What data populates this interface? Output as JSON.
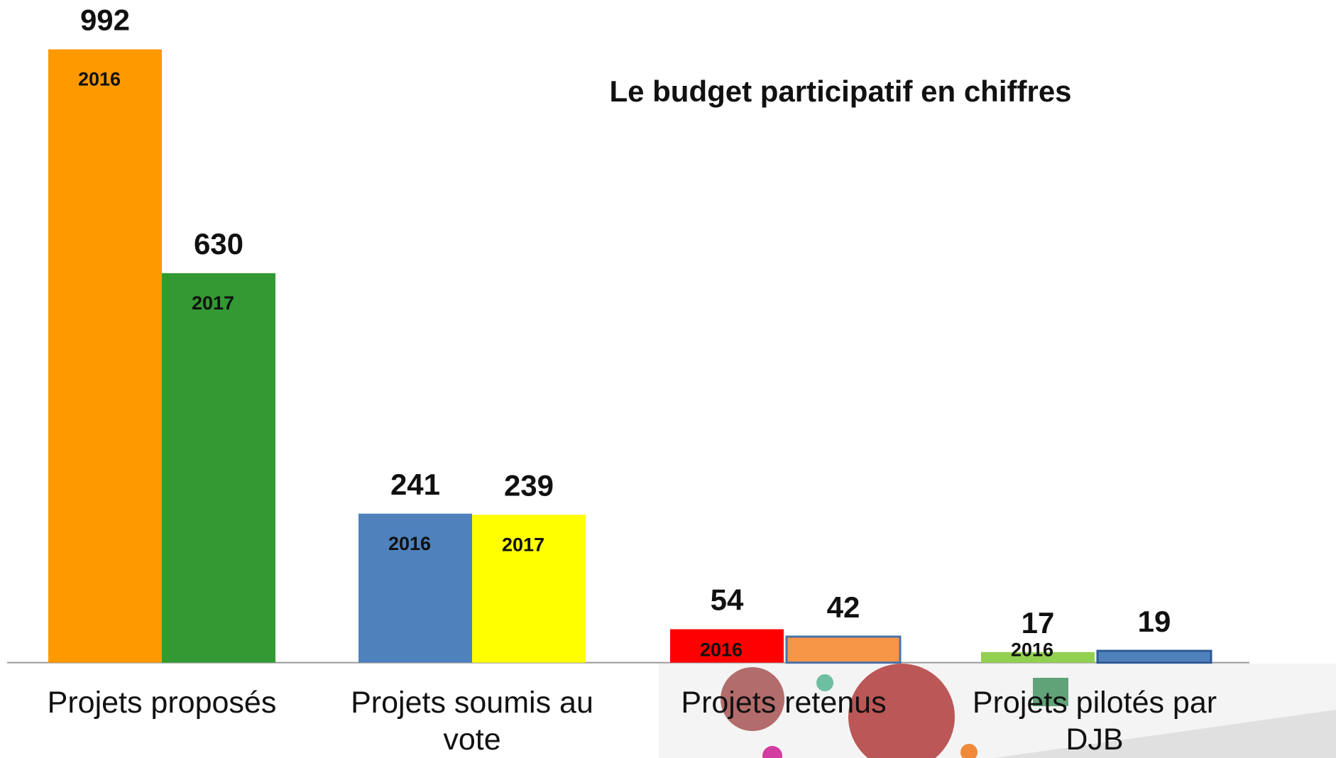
{
  "chart_data": {
    "type": "bar",
    "title": "Le budget participatif en chiffres",
    "categories": [
      "Projets proposés",
      "Projets soumis au vote",
      "Projets retenus",
      "Projets pilotés par DJB"
    ],
    "series": [
      {
        "values": [
          992,
          241,
          54,
          17
        ],
        "colors": [
          "#ff9900",
          "#4f81bd",
          "#ff0000",
          "#92d050"
        ],
        "bar_labels": [
          "2016",
          "2016",
          "2016",
          "2016"
        ]
      },
      {
        "values": [
          630,
          239,
          42,
          19
        ],
        "colors": [
          "#339933",
          "#ffff00",
          "#f79646",
          "#4f81bd"
        ],
        "edgecolors": [
          null,
          null,
          "#4a72a8",
          "#2f5a94"
        ],
        "bar_labels": [
          "2017",
          "2017",
          null,
          null
        ]
      }
    ],
    "ylim": [
      0,
      1000
    ]
  }
}
